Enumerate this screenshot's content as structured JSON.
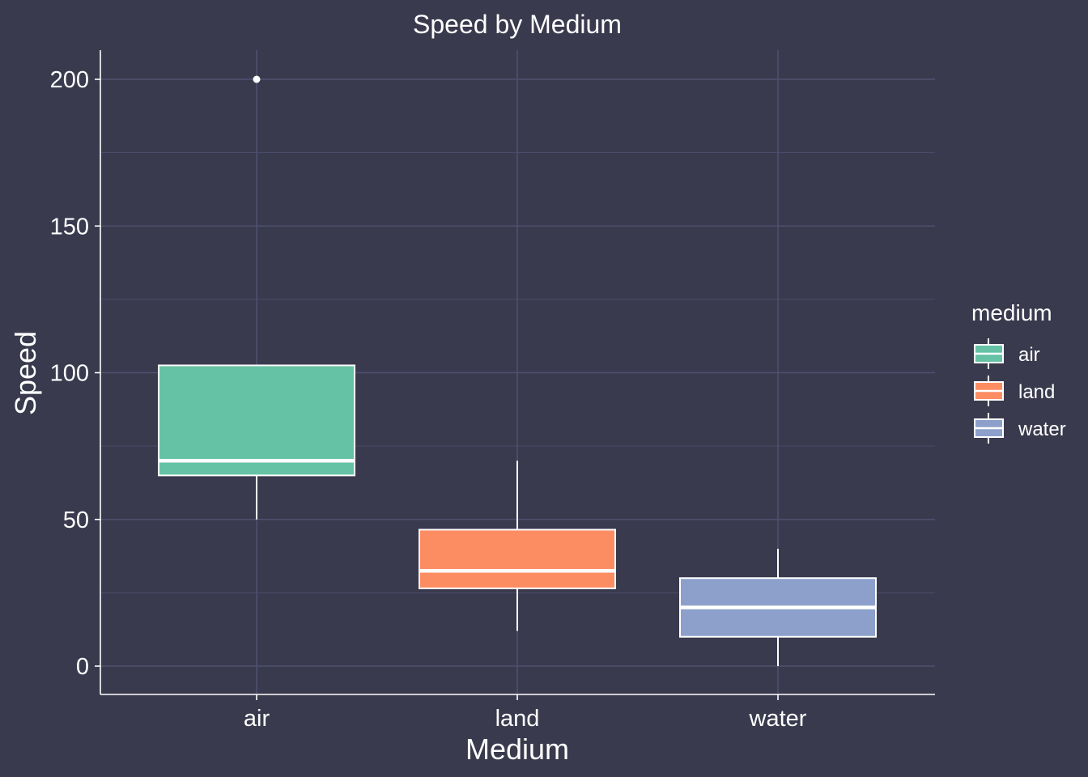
{
  "chart_data": {
    "type": "boxplot",
    "title": "Speed by Medium",
    "xlabel": "Medium",
    "ylabel": "Speed",
    "ylim": [
      -10,
      210
    ],
    "yticks": [
      0,
      50,
      100,
      150,
      200
    ],
    "grid": true,
    "categories": [
      "air",
      "land",
      "water"
    ],
    "boxes": [
      {
        "category": "air",
        "whisker_low": 50,
        "q1": 65,
        "median": 70,
        "q3": 102.5,
        "whisker_high": 102.5,
        "outliers": [
          200
        ],
        "color": "#66c2a5"
      },
      {
        "category": "land",
        "whisker_low": 12,
        "q1": 26.5,
        "median": 32.5,
        "q3": 46.5,
        "whisker_high": 70,
        "outliers": [],
        "color": "#fc8d62"
      },
      {
        "category": "water",
        "whisker_low": 0,
        "q1": 10,
        "median": 20,
        "q3": 30,
        "whisker_high": 40,
        "outliers": [],
        "color": "#8da0cb"
      }
    ],
    "legend": {
      "title": "medium",
      "position": "right",
      "items": [
        {
          "label": "air",
          "color": "#66c2a5"
        },
        {
          "label": "land",
          "color": "#fc8d62"
        },
        {
          "label": "water",
          "color": "#8da0cb"
        }
      ]
    }
  },
  "colors": {
    "background": "#3a3a4e",
    "grid": "#4f4f72",
    "axis": "#ffffff",
    "outline": "#ffffff"
  }
}
